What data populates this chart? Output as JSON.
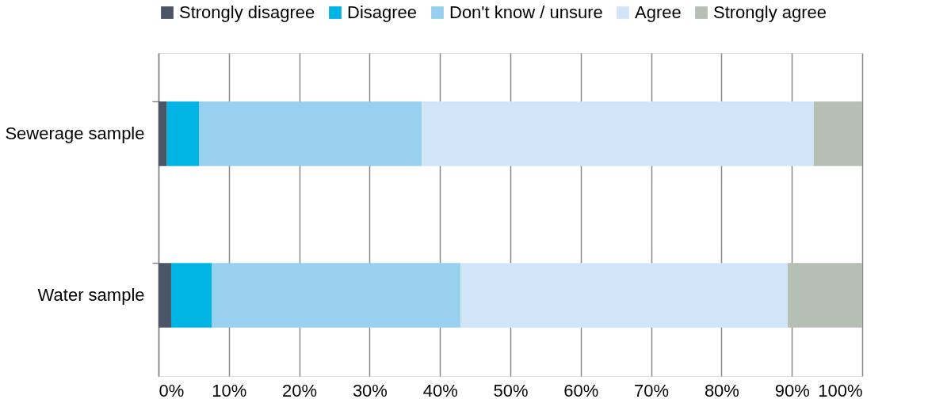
{
  "chart_data": {
    "type": "bar",
    "orientation": "horizontal",
    "stacked": true,
    "categories": [
      "Sewerage sample",
      "Water sample"
    ],
    "series": [
      {
        "name": "Strongly disagree",
        "color": "#4a5568",
        "values": [
          1.2,
          1.8
        ]
      },
      {
        "name": "Disagree",
        "color": "#00b4e4",
        "values": [
          4.6,
          5.8
        ]
      },
      {
        "name": "Don't know / unsure",
        "color": "#99d0f0",
        "values": [
          31.6,
          35.3
        ]
      },
      {
        "name": "Agree",
        "color": "#d0e6f8",
        "values": [
          55.7,
          46.5
        ]
      },
      {
        "name": "Strongly agree",
        "color": "#b5bfb4",
        "values": [
          6.9,
          10.6
        ]
      }
    ],
    "xlim": [
      0,
      100
    ],
    "xticks": [
      {
        "value": 0,
        "label": "0%"
      },
      {
        "value": 10,
        "label": "10%"
      },
      {
        "value": 20,
        "label": "20%"
      },
      {
        "value": 30,
        "label": "30%"
      },
      {
        "value": 40,
        "label": "40%"
      },
      {
        "value": 50,
        "label": "50%"
      },
      {
        "value": 60,
        "label": "60%"
      },
      {
        "value": 70,
        "label": "70%"
      },
      {
        "value": 80,
        "label": "80%"
      },
      {
        "value": 90,
        "label": "90%"
      },
      {
        "value": 100,
        "label": "100%"
      }
    ],
    "grid": "x",
    "legend": "top"
  }
}
